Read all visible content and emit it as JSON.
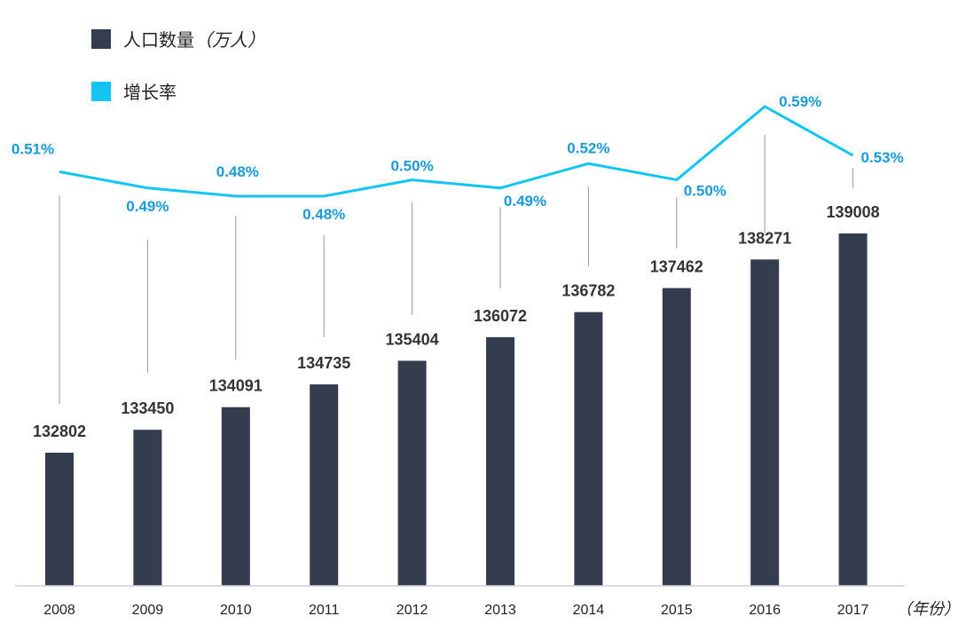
{
  "colors": {
    "bar": "#333d4e",
    "line": "#13c5f2",
    "line_label": "#1a9ad6",
    "bar_label": "#333333",
    "connector": "#999999",
    "axis": "#d0d0d0"
  },
  "legend": [
    {
      "label": "人口数量",
      "unit": "（万人）",
      "color": "#333d4e"
    },
    {
      "label": "增长率",
      "unit": "",
      "color": "#13c5f2"
    }
  ],
  "chart_data": {
    "type": "bar+line",
    "title": "",
    "xlabel": "（年份）",
    "categories": [
      "2008",
      "2009",
      "2010",
      "2011",
      "2012",
      "2013",
      "2014",
      "2015",
      "2016",
      "2017"
    ],
    "series": [
      {
        "name": "人口数量（万人）",
        "type": "bar",
        "values": [
          132802,
          133450,
          134091,
          134735,
          135404,
          136072,
          136782,
          137462,
          138271,
          139008
        ]
      },
      {
        "name": "增长率",
        "type": "line",
        "values": [
          0.51,
          0.49,
          0.48,
          0.48,
          0.5,
          0.49,
          0.52,
          0.5,
          0.59,
          0.53
        ],
        "labels": [
          "0.51%",
          "0.49%",
          "0.48%",
          "0.48%",
          "0.50%",
          "0.49%",
          "0.52%",
          "0.50%",
          "0.59%",
          "0.53%"
        ]
      }
    ],
    "grid": false,
    "legend_position": "top-left"
  }
}
